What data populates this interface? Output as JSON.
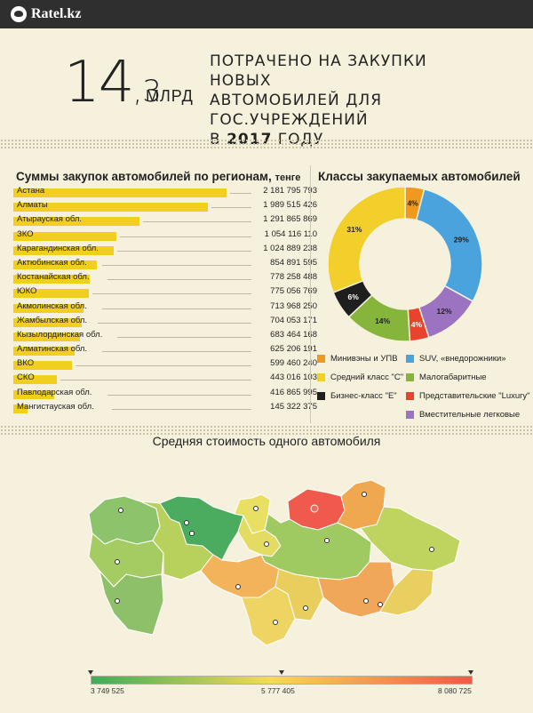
{
  "header": {
    "brand": "Ratel.kz"
  },
  "hero": {
    "value_int": "14",
    "value_dec": ",3",
    "unit": "МЛРД",
    "line1": "ПОТРАЧЕНО НА ЗАКУПКИ НОВЫХ",
    "line2": "АВТОМОБИЛЕЙ ДЛЯ ГОС.УЧРЕЖДЕНИЙ",
    "line3_pre": "В ",
    "line3_year": "2017",
    "line3_post": " ГОДУ"
  },
  "colors": {
    "background": "#f6f1dc",
    "bar": "#f2cf1e",
    "header": "#2f2f2f"
  },
  "chart_data": [
    {
      "type": "bar",
      "title": "Суммы закупок автомобилей по регионам,",
      "title_unit": "тенге",
      "categories": [
        "Астана",
        "Алматы",
        "Атырауская обл.",
        "ЗКО",
        "Карагандинская обл.",
        "Актюбинская обл.",
        "Костанайская обл.",
        "ЮКО",
        "Акмолинская обл.",
        "Жамбылская обл.",
        "Кызылординская обл.",
        "Алматинская обл.",
        "ВКО",
        "СКО",
        "Павлодарская обл.",
        "Мангистауская обл."
      ],
      "labels": [
        "2 181 795 793",
        "1 989 515 426",
        "1 291 865 869",
        "1 054 116 110",
        "1 024 889 238",
        "854 891 595",
        "778 258 488",
        "775 056 769",
        "713 968 250",
        "704 053 171",
        "683 464 168",
        "625 206 191",
        "599 460 240",
        "443 016 103",
        "416 865 995",
        "145 322 375"
      ],
      "values": [
        2181795793,
        1989515426,
        1291865869,
        1054116110,
        1024889238,
        854891595,
        778258488,
        775056769,
        713968250,
        704053171,
        683464168,
        625206191,
        599460240,
        443016103,
        416865995,
        145322375
      ],
      "orientation": "horizontal"
    },
    {
      "type": "pie",
      "title": "Классы закупаемых автомобилей",
      "donut": true,
      "slices": [
        {
          "name": "Минивэны и УПВ",
          "value": 4,
          "label": "4%",
          "color": "#ef9a1f"
        },
        {
          "name": "SUV, «внедорожники»",
          "value": 29,
          "label": "29%",
          "color": "#4aa3dc"
        },
        {
          "name": "Вместительные легковые",
          "value": 12,
          "label": "12%",
          "color": "#9b73c0"
        },
        {
          "name": "Представительские \"Luxury\"",
          "value": 4,
          "label": "4%",
          "color": "#e8432d"
        },
        {
          "name": "Малогабаритные",
          "value": 14,
          "label": "14%",
          "color": "#86b53c"
        },
        {
          "name": "Бизнес-класс \"Е\"",
          "value": 6,
          "label": "6%",
          "color": "#1f1f1f"
        },
        {
          "name": "Средний класс \"С\"",
          "value": 31,
          "label": "31%",
          "color": "#f3cf2b"
        }
      ],
      "legend": [
        {
          "name": "Минивэны и УПВ",
          "color": "#ef9a1f"
        },
        {
          "name": "SUV, «внедорожники»",
          "color": "#4aa3dc"
        },
        {
          "name": "Средний класс \"С\"",
          "color": "#f3cf2b"
        },
        {
          "name": "Малогабаритные",
          "color": "#86b53c"
        },
        {
          "name": "Бизнес-класс \"Е\"",
          "color": "#1f1f1f"
        },
        {
          "name": "Представительские \"Luxury\"",
          "color": "#e8432d"
        },
        {
          "name": "Вместительные легковые",
          "color": "#9b73c0"
        }
      ]
    },
    {
      "type": "heatmap",
      "title": "Средняя стоимость одного автомобиля",
      "scale_min": "3 749 525",
      "scale_mid": "5 777 405",
      "scale_max": "8 080 725",
      "scale_colors": [
        "#3fac5a",
        "#f6d95a",
        "#ee5a4a"
      ]
    }
  ]
}
